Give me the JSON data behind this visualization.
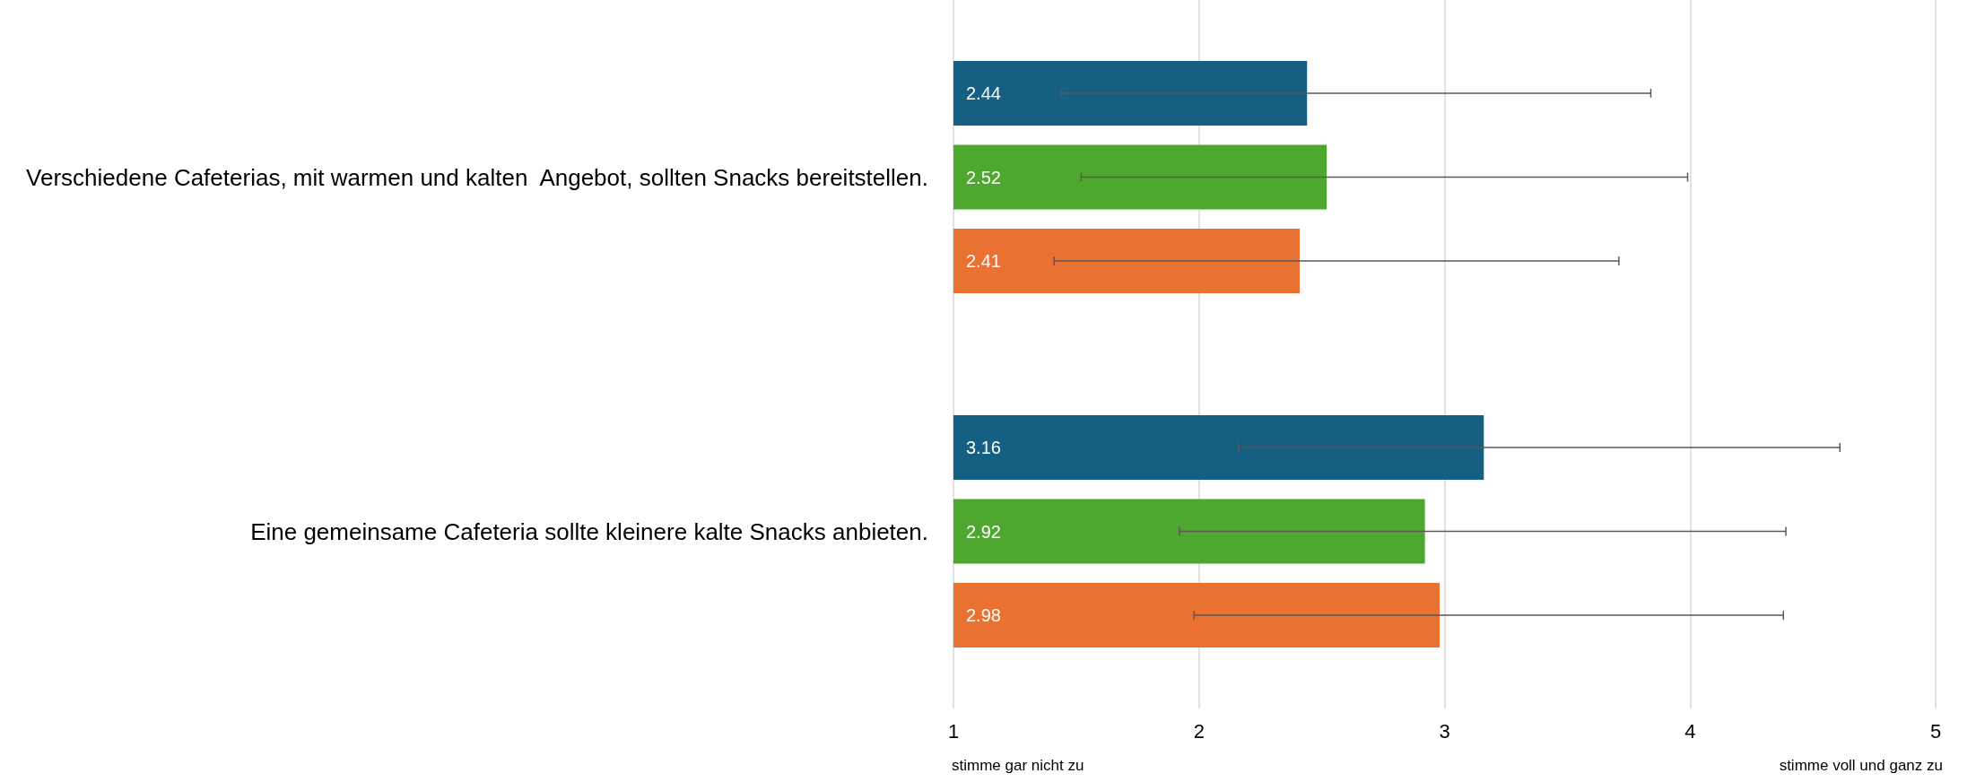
{
  "chart_data": {
    "type": "bar",
    "orientation": "horizontal",
    "categories": [
      "Verschiedene Cafeterias, mit warmen und kalten  Angebot, sollten Snacks bereitstellen.",
      "Eine gemeinsame Cafeteria sollte kleinere kalte Snacks anbieten."
    ],
    "series": [
      {
        "color": "#156082",
        "values": [
          2.44,
          3.16
        ],
        "errors": [
          [
            1.44,
            3.84
          ],
          [
            2.16,
            4.61
          ]
        ]
      },
      {
        "color": "#4ea72e",
        "values": [
          2.52,
          2.92
        ],
        "errors": [
          [
            1.52,
            3.99
          ],
          [
            1.92,
            4.39
          ]
        ]
      },
      {
        "color": "#e97132",
        "values": [
          2.41,
          2.98
        ],
        "errors": [
          [
            1.41,
            3.71
          ],
          [
            1.98,
            4.38
          ]
        ]
      }
    ],
    "xlim": [
      1,
      5
    ],
    "xticks": [
      1,
      2,
      3,
      4,
      5
    ],
    "grid": "x",
    "data_labels": true,
    "annotations": [
      "stimme gar nicht zu",
      "stimme voll und ganz zu"
    ]
  }
}
